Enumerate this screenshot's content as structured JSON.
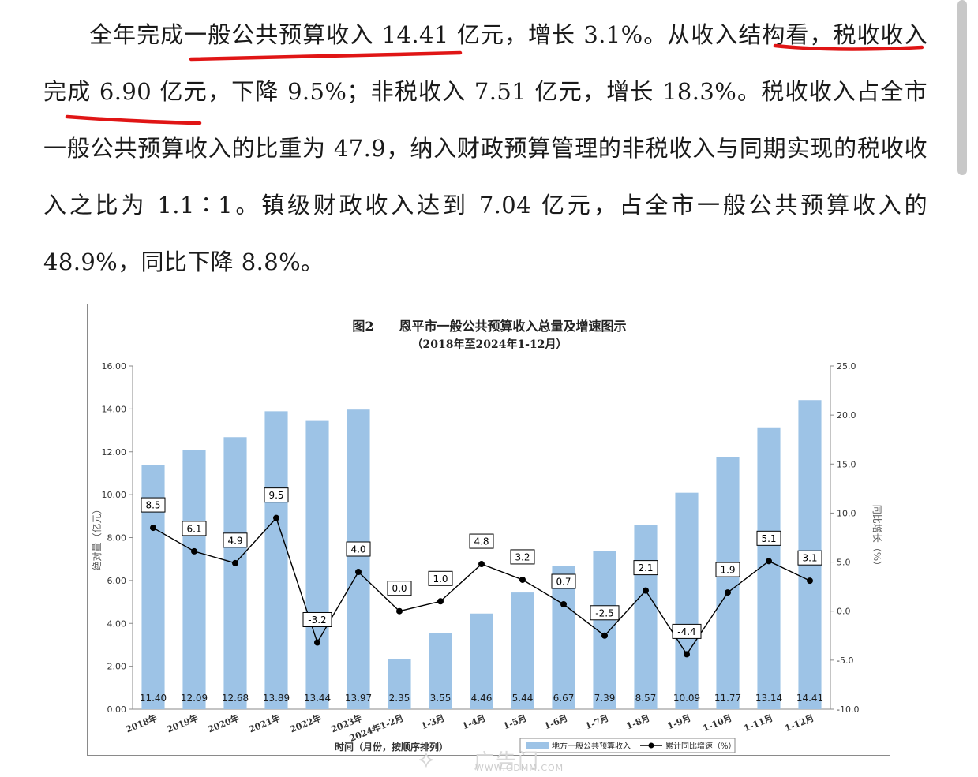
{
  "article": {
    "paragraph": "全年完成一般公共预算收入 14.41 亿元，增长 3.1%。从收入结构看，税收收入完成 6.90 亿元，下降 9.5%；非税收入 7.51 亿元，增长 18.3%。税收收入占全市一般公共预算收入的比重为 47.9，纳入财政预算管理的非税收入与同期实现的税收收入之比为 1.1∶1。镇级财政收入达到 7.04 亿元，占全市一般公共预算收入的 48.9%，同比下降 8.8%。"
  },
  "colors": {
    "bar": "#9dc3e6",
    "line": "#000000",
    "underline": "#e01515"
  },
  "watermark": {
    "big": "广告门",
    "small": "WWW.GDMM.COM"
  },
  "chart_data": {
    "type": "bar",
    "title": "图2　　恩平市一般公共预算收入总量及增速图示",
    "subtitle": "（2018年至2024年1-12月）",
    "xlabel": "时间（月份，按顺序排列）",
    "ylabel": "绝对量（亿元）",
    "y2label": "同比增长（%）",
    "ylim": [
      0,
      16
    ],
    "y2lim": [
      -10,
      25
    ],
    "yticks": [
      "0.00",
      "2.00",
      "4.00",
      "6.00",
      "8.00",
      "10.00",
      "12.00",
      "14.00",
      "16.00"
    ],
    "y2ticks": [
      "-10.0",
      "-5.0",
      "0.0",
      "5.0",
      "10.0",
      "15.0",
      "20.0",
      "25.0"
    ],
    "categories": [
      "2018年",
      "2019年",
      "2020年",
      "2021年",
      "2022年",
      "2023年",
      "2024年1-2月",
      "1-3月",
      "1-4月",
      "1-5月",
      "1-6月",
      "1-7月",
      "1-8月",
      "1-9月",
      "1-10月",
      "1-11月",
      "1-12月"
    ],
    "series": [
      {
        "name": "地方一般公共预算收入",
        "type": "bar",
        "axis": "left",
        "values": [
          11.4,
          12.09,
          12.68,
          13.89,
          13.44,
          13.97,
          2.35,
          3.55,
          4.46,
          5.44,
          6.67,
          7.39,
          8.57,
          10.09,
          11.77,
          13.14,
          14.41
        ],
        "labels": [
          "11.40",
          "12.09",
          "12.68",
          "13.89",
          "13.44",
          "13.97",
          "2.35",
          "3.55",
          "4.46",
          "5.44",
          "6.67",
          "7.39",
          "8.57",
          "10.09",
          "11.77",
          "13.14",
          "14.41"
        ]
      },
      {
        "name": "累计同比增速（%）",
        "type": "line",
        "axis": "right",
        "values": [
          8.5,
          6.1,
          4.9,
          9.5,
          -3.2,
          4.0,
          0.0,
          1.0,
          4.8,
          3.2,
          0.7,
          -2.5,
          2.1,
          -4.4,
          1.9,
          5.1,
          3.1
        ],
        "labels": [
          "8.5",
          "6.1",
          "4.9",
          "9.5",
          "-3.2",
          "4.0",
          "0.0",
          "1.0",
          "4.8",
          "3.2",
          "0.7",
          "-2.5",
          "2.1",
          "-4.4",
          "1.9",
          "5.1",
          "3.1"
        ]
      }
    ],
    "legend": "bottom",
    "grid": false
  }
}
